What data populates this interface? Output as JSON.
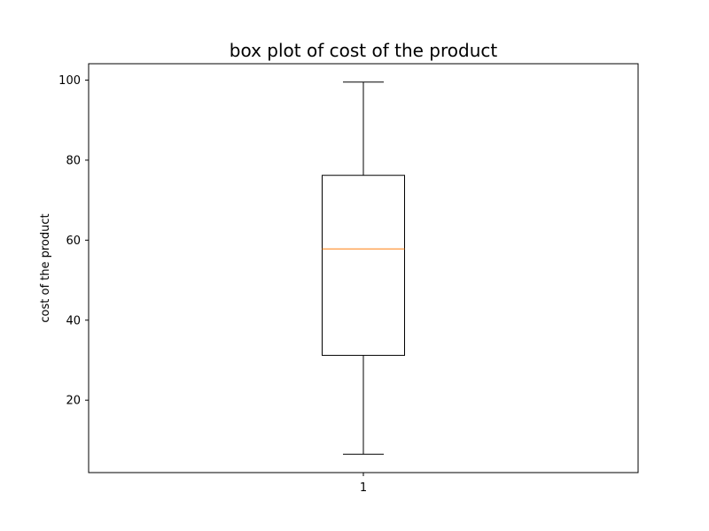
{
  "chart_data": {
    "type": "box",
    "title": "box plot of cost of the product",
    "xlabel": "",
    "ylabel": "cost of the product",
    "categories": [
      "1"
    ],
    "boxes": [
      {
        "category": "1",
        "whisker_low": 6.5,
        "q1": 31.2,
        "median": 57.8,
        "q3": 76.2,
        "whisker_high": 99.5
      }
    ],
    "ylim": [
      1.9,
      104.1
    ],
    "yticks": [
      20,
      40,
      60,
      80,
      100
    ],
    "grid": false,
    "colors": {
      "box": "#000000",
      "median": "#ff7f0e",
      "axes": "#000000",
      "background": "#ffffff"
    }
  }
}
